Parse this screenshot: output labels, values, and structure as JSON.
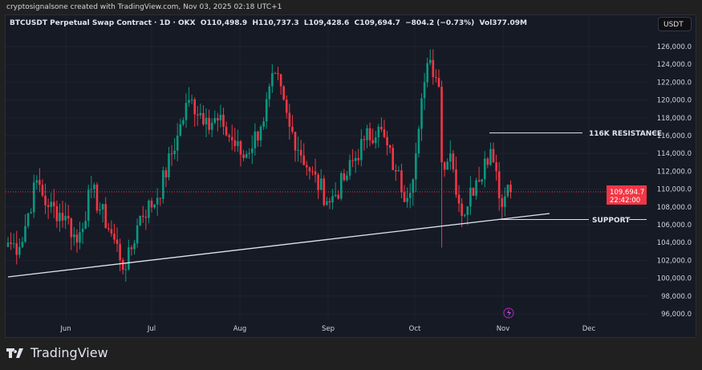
{
  "credit": "cryptosignalsone created with TradingView.com, Nov 03, 2025 02:18 UTC+1",
  "legend": "BTCUSDT Perpetual Swap Contract · 1D · OKX  O110,498.9  H110,737.3  L109,428.6  C109,694.7  −804.2 (−0.73%)  Vol377.09M",
  "currency": "USDT",
  "brand": "TradingView",
  "colors": {
    "up": "#089981",
    "down": "#f23645",
    "bg": "#161a25"
  },
  "chart_data": {
    "type": "candlestick",
    "symbol": "BTCUSDT",
    "ylim": [
      95000,
      127000
    ],
    "y_ticks": [
      "96,000.0",
      "98,000.0",
      "100,000.0",
      "102,000.0",
      "104,000.0",
      "106,000.0",
      "108,000.0",
      "110,000.0",
      "112,000.0",
      "114,000.0",
      "116,000.0",
      "118,000.0",
      "120,000.0",
      "122,000.0",
      "124,000.0",
      "126,000.0"
    ],
    "x_ticks": [
      "Jun",
      "Jul",
      "Aug",
      "Sep",
      "Oct",
      "Nov",
      "Dec"
    ],
    "close_keypoints_day_k": [
      [
        0,
        104
      ],
      [
        4,
        103.5
      ],
      [
        10,
        111
      ],
      [
        14,
        108
      ],
      [
        20,
        107
      ],
      [
        24,
        104
      ],
      [
        29,
        110
      ],
      [
        36,
        105
      ],
      [
        41,
        101
      ],
      [
        46,
        107
      ],
      [
        52,
        109
      ],
      [
        59,
        116
      ],
      [
        63,
        120
      ],
      [
        69,
        118
      ],
      [
        75,
        117
      ],
      [
        82,
        113.5
      ],
      [
        88,
        117
      ],
      [
        93,
        123
      ],
      [
        98,
        117
      ],
      [
        105,
        112
      ],
      [
        112,
        108.5
      ],
      [
        117,
        111
      ],
      [
        124,
        115.5
      ],
      [
        129,
        117
      ],
      [
        135,
        112
      ],
      [
        139,
        109
      ],
      [
        142,
        114
      ],
      [
        145,
        122
      ],
      [
        147,
        124.5
      ],
      [
        150,
        121.5
      ],
      [
        151,
        113
      ],
      [
        154,
        114
      ],
      [
        158,
        107
      ],
      [
        163,
        111
      ],
      [
        168,
        114.5
      ],
      [
        170,
        112
      ],
      [
        172,
        108
      ],
      [
        174,
        110.5
      ],
      [
        175,
        109.7
      ]
    ],
    "last_price": {
      "value": "109,694.7",
      "countdown": "22:42:00"
    },
    "annotations": [
      {
        "label": "116K RESISTANCE",
        "price": 116300
      },
      {
        "label": "SUPPORT",
        "price": 106500
      }
    ],
    "trendline": {
      "from": [
        "May 12",
        100300
      ],
      "to": [
        "Nov 15",
        107200
      ]
    }
  }
}
